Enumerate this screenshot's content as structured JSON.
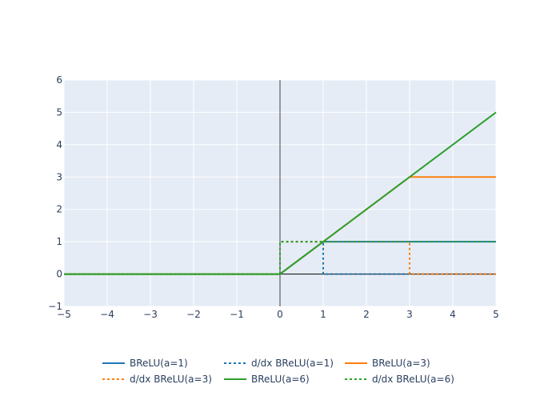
{
  "chart_data": {
    "type": "line",
    "title": "",
    "xlabel": "",
    "ylabel": "",
    "xlim": [
      -5,
      5
    ],
    "ylim": [
      -1,
      6
    ],
    "x_ticks": [
      -5,
      -4,
      -3,
      -2,
      -1,
      0,
      1,
      2,
      3,
      4,
      5
    ],
    "y_ticks": [
      -1,
      0,
      1,
      2,
      3,
      4,
      5,
      6
    ],
    "grid": true,
    "legend_position": "bottom",
    "plot_background": "#e5ecf6",
    "series": [
      {
        "name": "BReLU(a=1)",
        "color": "#1f77b4",
        "dash": "solid",
        "x": [
          -5,
          0,
          1,
          5
        ],
        "y": [
          0,
          0,
          1,
          1
        ]
      },
      {
        "name": "d/dx BReLU(a=1)",
        "color": "#1f77b4",
        "dash": "dot",
        "x": [
          -5,
          0,
          0,
          1,
          1,
          5
        ],
        "y": [
          0,
          0,
          1,
          1,
          0,
          0
        ]
      },
      {
        "name": "BReLU(a=3)",
        "color": "#ff7f0e",
        "dash": "solid",
        "x": [
          -5,
          0,
          3,
          5
        ],
        "y": [
          0,
          0,
          3,
          3
        ]
      },
      {
        "name": "d/dx BReLU(a=3)",
        "color": "#ff7f0e",
        "dash": "dot",
        "x": [
          -5,
          0,
          0,
          3,
          3,
          5
        ],
        "y": [
          0,
          0,
          1,
          1,
          0,
          0
        ]
      },
      {
        "name": "BReLU(a=6)",
        "color": "#2ca02c",
        "dash": "solid",
        "x": [
          -5,
          0,
          5
        ],
        "y": [
          0,
          0,
          5
        ]
      },
      {
        "name": "d/dx BReLU(a=6)",
        "color": "#2ca02c",
        "dash": "dot",
        "x": [
          -5,
          0,
          0,
          5
        ],
        "y": [
          0,
          0,
          1,
          1
        ]
      }
    ]
  }
}
